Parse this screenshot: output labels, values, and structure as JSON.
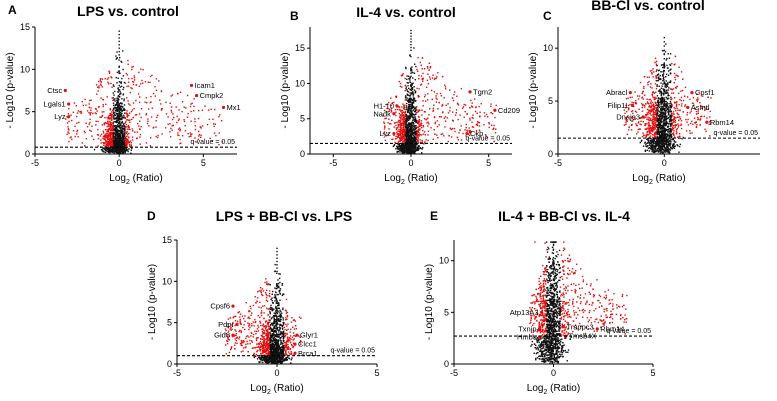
{
  "chart_data": [
    {
      "panel": "A",
      "type": "scatter",
      "title": "LPS vs. control",
      "xlabel": "Log2 (Ratio)",
      "ylabel": "- Log10 (p-value)",
      "xlim": [
        -5,
        7
      ],
      "ylim": [
        0,
        15
      ],
      "xticks": [
        -5,
        0,
        5
      ],
      "yticks": [
        0,
        5,
        10,
        15
      ],
      "q_threshold": 0.8,
      "q_label": "q-value = 0.05",
      "spread_left": 3.2,
      "spread_right": 6.2,
      "peak": 14.5,
      "genes": [
        {
          "name": "Ctsc",
          "x": -3.2,
          "y": 7.5,
          "side": "left"
        },
        {
          "name": "Lgals1",
          "x": -3.0,
          "y": 5.9,
          "side": "left"
        },
        {
          "name": "Lyz",
          "x": -3.0,
          "y": 4.4,
          "side": "left"
        },
        {
          "name": "Icam1",
          "x": 4.3,
          "y": 8.1,
          "side": "right"
        },
        {
          "name": "Cmpk2",
          "x": 4.6,
          "y": 6.9,
          "side": "right"
        },
        {
          "name": "Mx1",
          "x": 6.2,
          "y": 5.5,
          "side": "right"
        }
      ]
    },
    {
      "panel": "B",
      "type": "scatter",
      "title": "IL-4 vs. control",
      "xlabel": "Log2 (Ratio)",
      "ylabel": "- Log10 (p-value)",
      "xlim": [
        -6.5,
        6.5
      ],
      "ylim": [
        0,
        18
      ],
      "xticks": [
        -5,
        0,
        5
      ],
      "yticks": [
        0,
        5,
        10,
        15
      ],
      "q_threshold": 1.5,
      "q_label": "q-value = 0.05",
      "spread_left": 1.8,
      "spread_right": 5.5,
      "peak": 17.5,
      "genes": [
        {
          "name": "H1-10",
          "x": -0.9,
          "y": 6.8,
          "side": "left"
        },
        {
          "name": "Nadk",
          "x": -1.1,
          "y": 5.7,
          "side": "left"
        },
        {
          "name": "Lyz",
          "x": -1.1,
          "y": 2.9,
          "side": "left"
        },
        {
          "name": "Tgm2",
          "x": 3.8,
          "y": 8.8,
          "side": "right"
        },
        {
          "name": "Cd209",
          "x": 5.4,
          "y": 6.2,
          "side": "right"
        },
        {
          "name": "Ckb",
          "x": 3.6,
          "y": 2.9,
          "side": "right"
        }
      ]
    },
    {
      "panel": "C",
      "type": "scatter",
      "title": "BB-Cl vs. control",
      "xlabel": "Log2 (Ratio)",
      "ylabel": "- Log10 (p-value)",
      "xlim": [
        -5,
        4.5
      ],
      "ylim": [
        0,
        12
      ],
      "xticks": [
        -5,
        0
      ],
      "yticks": [
        0,
        5,
        10
      ],
      "q_threshold": 1.5,
      "q_label": "q-value = 0.05",
      "spread_left": 1.9,
      "spread_right": 2.2,
      "peak": 11.0,
      "genes": [
        {
          "name": "Abracl",
          "x": -1.6,
          "y": 5.8,
          "side": "left"
        },
        {
          "name": "Filip1L",
          "x": -1.5,
          "y": 4.6,
          "side": "left"
        },
        {
          "name": "Dnaja3",
          "x": -1.0,
          "y": 3.5,
          "side": "left"
        },
        {
          "name": "Cpsf1",
          "x": 1.3,
          "y": 5.8,
          "side": "right"
        },
        {
          "name": "Asmtl",
          "x": 1.1,
          "y": 4.4,
          "side": "right"
        },
        {
          "name": "Rbm14",
          "x": 2.0,
          "y": 3.0,
          "side": "right"
        }
      ]
    },
    {
      "panel": "D",
      "type": "scatter",
      "title": "LPS + BB-Cl vs. LPS",
      "xlabel": "Log2 (Ratio)",
      "ylabel": "- Log10 (p-value)",
      "xlim": [
        -5,
        5
      ],
      "ylim": [
        0,
        15
      ],
      "xticks": [
        -5,
        0,
        5
      ],
      "yticks": [
        0,
        5,
        10,
        15
      ],
      "q_threshold": 1.0,
      "q_label": "q-value = 0.05",
      "spread_left": 2.6,
      "spread_right": 1.2,
      "peak": 14.0,
      "genes": [
        {
          "name": "Cpsf6",
          "x": -2.2,
          "y": 7.0,
          "side": "left"
        },
        {
          "name": "Pdpr",
          "x": -2.0,
          "y": 4.8,
          "side": "left"
        },
        {
          "name": "Gid8",
          "x": -2.2,
          "y": 3.5,
          "side": "left"
        },
        {
          "name": "Glyr1",
          "x": 1.0,
          "y": 3.5,
          "side": "right"
        },
        {
          "name": "Clcc1",
          "x": 0.9,
          "y": 2.4,
          "side": "right"
        },
        {
          "name": "Brca1",
          "x": 0.9,
          "y": 1.3,
          "side": "right"
        }
      ]
    },
    {
      "panel": "E",
      "type": "scatter",
      "title": "IL-4 + BB-Cl vs. IL-4",
      "xlabel": "Log2 (Ratio)",
      "ylabel": "- Log10 (p-value)",
      "xlim": [
        -5,
        5
      ],
      "ylim": [
        0,
        12
      ],
      "xticks": [
        -5,
        0,
        5
      ],
      "yticks": [
        0,
        5,
        10
      ],
      "q_threshold": 2.7,
      "q_label": "q-value = 0.05",
      "spread_left": 1.2,
      "spread_right": 3.7,
      "peak": 11.5,
      "genes": [
        {
          "name": "Atp13A3",
          "x": -0.6,
          "y": 5.0,
          "side": "left"
        },
        {
          "name": "Txnip",
          "x": -0.7,
          "y": 3.4,
          "side": "left"
        },
        {
          "name": "Hmbs",
          "x": -0.7,
          "y": 2.6,
          "side": "left"
        },
        {
          "name": "Trappc3",
          "x": 0.5,
          "y": 3.6,
          "side": "right"
        },
        {
          "name": "Rbm14",
          "x": 2.2,
          "y": 3.4,
          "side": "right"
        },
        {
          "name": "Tmsb4X",
          "x": 0.6,
          "y": 2.7,
          "side": "right"
        }
      ]
    }
  ]
}
